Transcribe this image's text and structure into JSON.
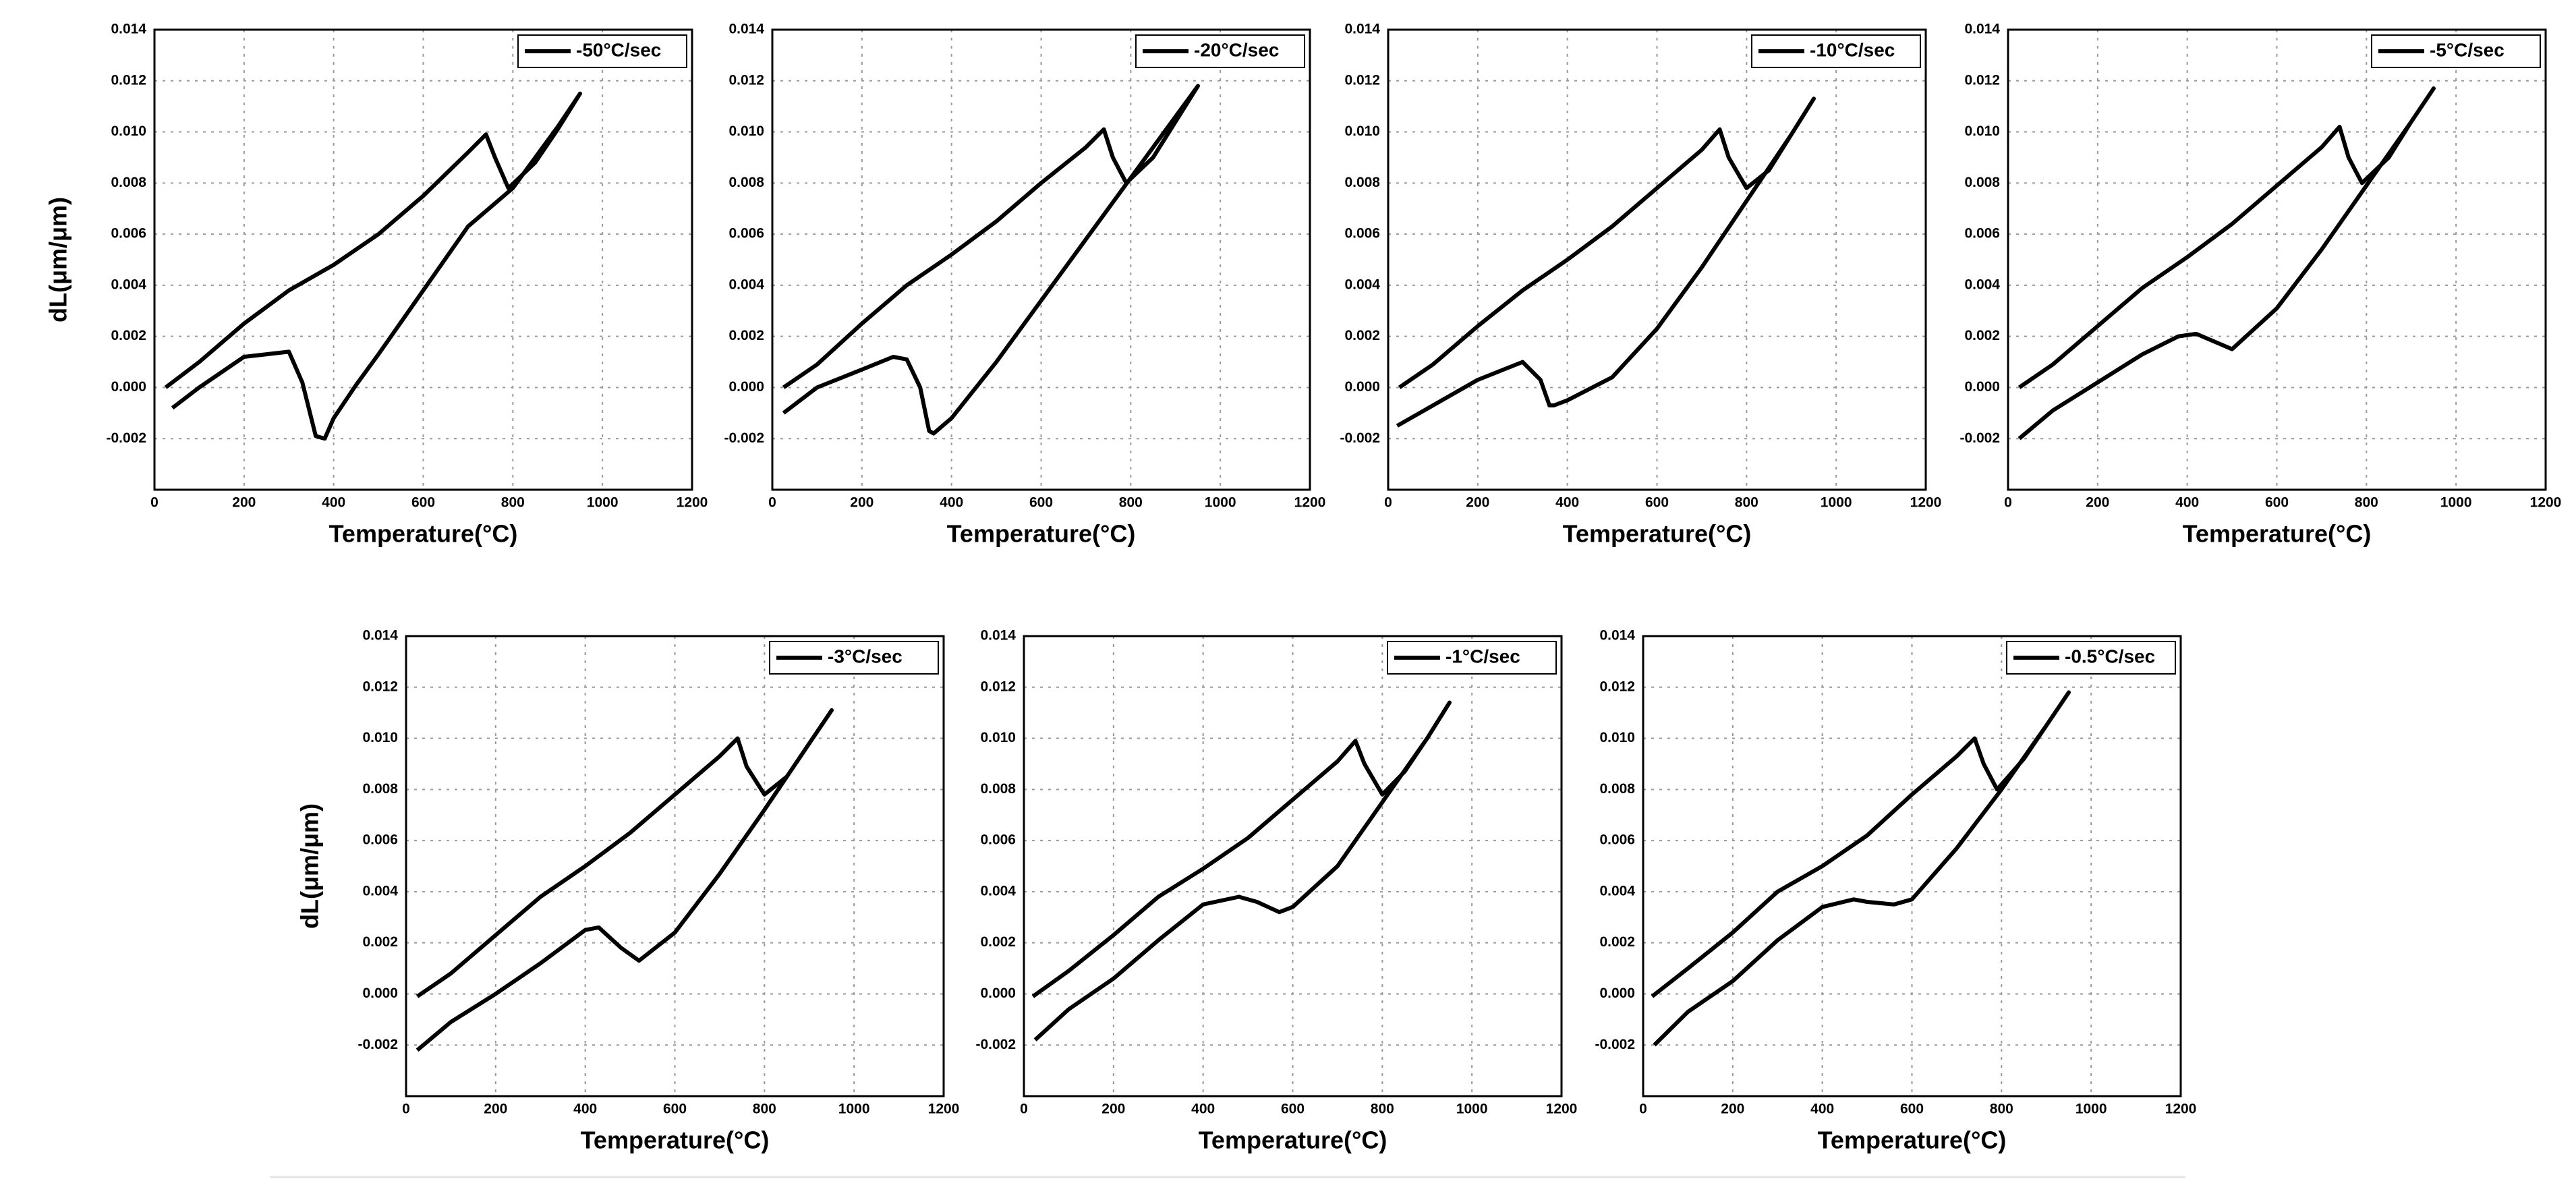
{
  "chart_data": [
    {
      "type": "line",
      "x_label": "Temperature(°C)",
      "y_label": "dL(μm/μm)",
      "legend": "upper right",
      "xlim": [
        0,
        1200
      ],
      "xticks": [
        0,
        200,
        400,
        600,
        800,
        1000,
        1200
      ],
      "ylim": [
        -0.004,
        0.014
      ],
      "yticks": [
        -0.002,
        {
          "value": 0,
          "label": "0.000"
        },
        0.002,
        0.004,
        0.006,
        0.008,
        {
          "value": 0.01,
          "label": "0.010"
        },
        0.012,
        0.014
      ],
      "grid": true,
      "x": [
        25,
        100,
        200,
        300,
        400,
        500,
        600,
        700,
        740,
        760,
        790,
        850,
        900,
        950,
        900,
        800,
        700,
        600,
        500,
        450,
        400,
        380,
        360,
        330,
        300,
        200,
        100,
        40
      ],
      "series": [
        {
          "name": "-50°C/sec",
          "color": "#000000",
          "values": [
            0,
            0.001,
            0.0025,
            0.0038,
            0.0048,
            0.006,
            0.0075,
            0.0092,
            0.0099,
            0.009,
            0.0078,
            0.0088,
            0.0101,
            0.0115,
            0.0102,
            0.0078,
            0.0063,
            0.0038,
            0.0013,
            0.0001,
            -0.0012,
            -0.002,
            -0.0019,
            0.0002,
            0.0014,
            0.0012,
            0,
            -0.0008
          ]
        }
      ]
    },
    {
      "type": "line",
      "x_label": "Temperature(°C)",
      "legend": "upper right",
      "xlim": [
        0,
        1200
      ],
      "xticks": [
        0,
        200,
        400,
        600,
        800,
        1000,
        1200
      ],
      "ylim": [
        -0.004,
        0.014
      ],
      "yticks": [
        -0.002,
        {
          "value": 0,
          "label": "0.000"
        },
        0.002,
        0.004,
        0.006,
        0.008,
        {
          "value": 0.01,
          "label": "0.010"
        },
        0.012,
        0.014
      ],
      "grid": true,
      "x": [
        25,
        100,
        200,
        300,
        400,
        500,
        600,
        700,
        740,
        760,
        790,
        850,
        900,
        950,
        900,
        800,
        700,
        600,
        500,
        400,
        360,
        350,
        330,
        300,
        270,
        200,
        100,
        25
      ],
      "series": [
        {
          "name": "-20°C/sec",
          "color": "#000000",
          "values": [
            0,
            0.0009,
            0.0025,
            0.004,
            0.0052,
            0.0065,
            0.008,
            0.0094,
            0.0101,
            0.009,
            0.008,
            0.009,
            0.0104,
            0.0118,
            0.0106,
            0.0082,
            0.0058,
            0.0034,
            0.001,
            -0.0012,
            -0.0018,
            -0.0017,
            0,
            0.0011,
            0.0012,
            0.0007,
            0,
            -0.001
          ]
        }
      ]
    },
    {
      "type": "line",
      "x_label": "Temperature(°C)",
      "legend": "upper right",
      "xlim": [
        0,
        1200
      ],
      "xticks": [
        0,
        200,
        400,
        600,
        800,
        1000,
        1200
      ],
      "ylim": [
        -0.004,
        0.014
      ],
      "yticks": [
        -0.002,
        {
          "value": 0,
          "label": "0.000"
        },
        0.002,
        0.004,
        0.006,
        0.008,
        {
          "value": 0.01,
          "label": "0.010"
        },
        0.012,
        0.014
      ],
      "grid": true,
      "x": [
        25,
        100,
        200,
        300,
        400,
        500,
        600,
        700,
        740,
        760,
        800,
        850,
        900,
        950,
        900,
        800,
        700,
        600,
        500,
        400,
        370,
        360,
        340,
        300,
        200,
        100,
        20
      ],
      "series": [
        {
          "name": "-10°C/sec",
          "color": "#000000",
          "values": [
            0,
            0.0009,
            0.0024,
            0.0038,
            0.005,
            0.0063,
            0.0078,
            0.0093,
            0.0101,
            0.009,
            0.0078,
            0.0085,
            0.0099,
            0.0113,
            0.0099,
            0.0073,
            0.0047,
            0.0023,
            0.0004,
            -0.0005,
            -0.0007,
            -0.0007,
            0.0003,
            0.001,
            0.0003,
            -0.0007,
            -0.0015
          ]
        }
      ]
    },
    {
      "type": "line",
      "x_label": "Temperature(°C)",
      "legend": "upper right",
      "xlim": [
        0,
        1200
      ],
      "xticks": [
        0,
        200,
        400,
        600,
        800,
        1000,
        1200
      ],
      "ylim": [
        -0.004,
        0.014
      ],
      "yticks": [
        -0.002,
        {
          "value": 0,
          "label": "0.000"
        },
        0.002,
        0.004,
        0.006,
        0.008,
        {
          "value": 0.01,
          "label": "0.010"
        },
        0.012,
        0.014
      ],
      "grid": true,
      "x": [
        25,
        100,
        200,
        300,
        400,
        500,
        600,
        700,
        740,
        760,
        790,
        850,
        900,
        950,
        900,
        800,
        700,
        600,
        500,
        460,
        420,
        380,
        300,
        200,
        100,
        25
      ],
      "series": [
        {
          "name": "-5°C/sec",
          "color": "#000000",
          "values": [
            0,
            0.0009,
            0.0024,
            0.0039,
            0.0051,
            0.0064,
            0.0079,
            0.0094,
            0.0102,
            0.009,
            0.008,
            0.009,
            0.0104,
            0.0117,
            0.0104,
            0.0079,
            0.0054,
            0.0031,
            0.0015,
            0.0018,
            0.0021,
            0.002,
            0.0013,
            0.0002,
            -0.0009,
            -0.002
          ]
        }
      ]
    },
    {
      "type": "line",
      "x_label": "Temperature(°C)",
      "y_label": "dL(μm/μm)",
      "legend": "upper right",
      "xlim": [
        0,
        1200
      ],
      "xticks": [
        0,
        200,
        400,
        600,
        800,
        1000,
        1200
      ],
      "ylim": [
        -0.004,
        0.014
      ],
      "yticks": [
        -0.002,
        {
          "value": 0,
          "label": "0.000"
        },
        0.002,
        0.004,
        0.006,
        0.008,
        {
          "value": 0.01,
          "label": "0.010"
        },
        0.012,
        0.014
      ],
      "grid": true,
      "x": [
        25,
        100,
        200,
        300,
        400,
        500,
        600,
        700,
        740,
        760,
        800,
        850,
        900,
        950,
        900,
        800,
        700,
        600,
        520,
        480,
        430,
        400,
        300,
        200,
        100,
        25
      ],
      "series": [
        {
          "name": "-3°C/sec",
          "color": "#000000",
          "values": [
            -0.0001,
            0.0008,
            0.0023,
            0.0038,
            0.005,
            0.0063,
            0.0078,
            0.0093,
            0.01,
            0.0089,
            0.0078,
            0.0085,
            0.0098,
            0.0111,
            0.0098,
            0.0072,
            0.0047,
            0.0024,
            0.0013,
            0.0018,
            0.0026,
            0.0025,
            0.0012,
            0,
            -0.0011,
            -0.0022
          ]
        }
      ]
    },
    {
      "type": "line",
      "x_label": "Temperature(°C)",
      "legend": "upper right",
      "xlim": [
        0,
        1200
      ],
      "xticks": [
        0,
        200,
        400,
        600,
        800,
        1000,
        1200
      ],
      "ylim": [
        -0.004,
        0.014
      ],
      "yticks": [
        -0.002,
        {
          "value": 0,
          "label": "0.000"
        },
        0.002,
        0.004,
        0.006,
        0.008,
        {
          "value": 0.01,
          "label": "0.010"
        },
        0.012,
        0.014
      ],
      "grid": true,
      "x": [
        20,
        100,
        200,
        300,
        400,
        500,
        600,
        700,
        740,
        760,
        800,
        850,
        900,
        950,
        900,
        800,
        700,
        600,
        570,
        520,
        480,
        400,
        300,
        200,
        100,
        25
      ],
      "series": [
        {
          "name": "-1°C/sec",
          "color": "#000000",
          "values": [
            -0.0001,
            0.0009,
            0.0023,
            0.0038,
            0.0049,
            0.0061,
            0.0076,
            0.0091,
            0.0099,
            0.009,
            0.0078,
            0.0087,
            0.01,
            0.0114,
            0.01,
            0.0075,
            0.005,
            0.0034,
            0.0032,
            0.0036,
            0.0038,
            0.0035,
            0.0021,
            0.0006,
            -0.0006,
            -0.0018
          ]
        }
      ]
    },
    {
      "type": "line",
      "x_label": "Temperature(°C)",
      "legend": "upper right",
      "xlim": [
        0,
        1200
      ],
      "xticks": [
        0,
        200,
        400,
        600,
        800,
        1000,
        1200
      ],
      "ylim": [
        -0.004,
        0.014
      ],
      "yticks": [
        -0.002,
        {
          "value": 0,
          "label": "0.000"
        },
        0.002,
        0.004,
        0.006,
        0.008,
        {
          "value": 0.01,
          "label": "0.010"
        },
        0.012,
        0.014
      ],
      "grid": true,
      "x": [
        20,
        100,
        200,
        300,
        400,
        500,
        600,
        700,
        740,
        760,
        790,
        850,
        900,
        950,
        900,
        800,
        700,
        600,
        560,
        500,
        470,
        400,
        300,
        200,
        100,
        25
      ],
      "series": [
        {
          "name": "-0.5°C/sec",
          "color": "#000000",
          "values": [
            -0.0001,
            0.001,
            0.0024,
            0.004,
            0.005,
            0.0062,
            0.0078,
            0.0093,
            0.01,
            0.009,
            0.008,
            0.0092,
            0.0105,
            0.0118,
            0.0105,
            0.008,
            0.0057,
            0.0037,
            0.0035,
            0.0036,
            0.0037,
            0.0034,
            0.0021,
            0.0005,
            -0.0007,
            -0.002
          ]
        }
      ]
    }
  ]
}
